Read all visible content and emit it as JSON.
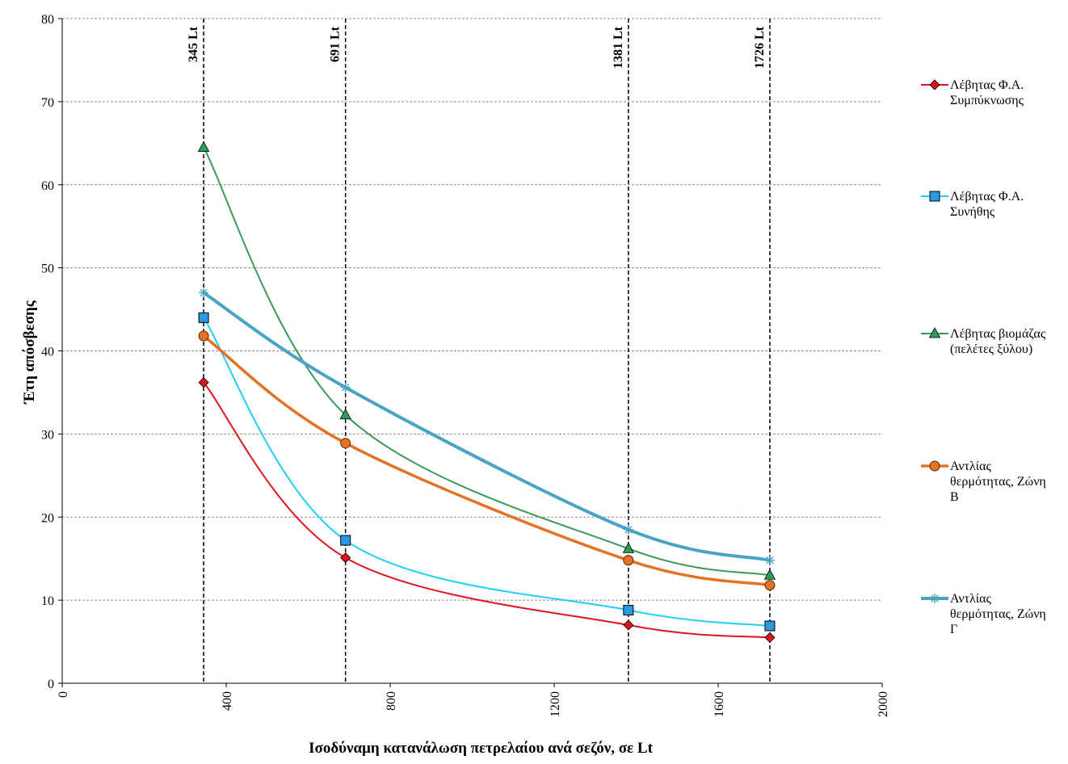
{
  "chart_data": {
    "type": "line",
    "xlabel": "Ισοδύναμη κατανάλωση πετρελαίου ανά σεζόν, σε Lt",
    "ylabel": "Έτη απόσβεσης",
    "xlim": [
      0,
      2000
    ],
    "ylim": [
      0,
      80
    ],
    "xticks": [
      "0",
      "400",
      "800",
      "1200",
      "1600",
      "2000"
    ],
    "yticks": [
      "0",
      "10",
      "20",
      "30",
      "40",
      "50",
      "60",
      "70",
      "80"
    ],
    "x": [
      345,
      691,
      1381,
      1726
    ],
    "reference_lines": [
      {
        "x": 345,
        "label": "345 Lt"
      },
      {
        "x": 691,
        "label": "691 Lt"
      },
      {
        "x": 1381,
        "label": "1381 Lt"
      },
      {
        "x": 1726,
        "label": "1726 Lt"
      }
    ],
    "grid": "horizontal",
    "legend_position": "right",
    "series": [
      {
        "name": "Λέβητας Φ.Α. Συμπύκνωσης",
        "legend_lines": [
          "Λέβητας Φ.Α.",
          "Συμπύκνωσης"
        ],
        "values": [
          36.2,
          15.1,
          7.0,
          5.5
        ],
        "color": "#e0141e",
        "marker": "diamond",
        "marker_fill": "#e0141e"
      },
      {
        "name": "Λέβητας Φ.Α. Συνήθης",
        "legend_lines": [
          "Λέβητας Φ.Α.",
          "Συνήθης"
        ],
        "values": [
          44.0,
          17.2,
          8.8,
          6.9
        ],
        "color": "#1ed0f5",
        "marker": "square",
        "marker_fill": "#2a9be0"
      },
      {
        "name": "Λέβητας βιομάζας (πελέτες ξύλου)",
        "legend_lines": [
          "Λέβητας βιομάζας",
          "(πελέτες ξύλου)"
        ],
        "values": [
          64.5,
          32.3,
          16.2,
          13.0
        ],
        "color": "#3a9a5c",
        "marker": "triangle",
        "marker_fill": "#2f9b5a"
      },
      {
        "name": "Αντλίας θερμότητας, Ζώνη Β",
        "legend_lines": [
          "Αντλίας",
          "θερμότητας, Ζώνη",
          "Β"
        ],
        "values": [
          41.8,
          28.9,
          14.8,
          11.8
        ],
        "color": "#e37222",
        "marker": "circle",
        "marker_fill": "#e37222"
      },
      {
        "name": "Αντλίας θερμότητας, Ζώνη Γ",
        "legend_lines": [
          "Αντλίας",
          "θερμότητας, Ζώνη",
          "Γ"
        ],
        "values": [
          47.0,
          35.6,
          18.5,
          14.8
        ],
        "color": "#4aa3c4",
        "marker": "star",
        "marker_fill": "#4aa3c4"
      }
    ]
  }
}
